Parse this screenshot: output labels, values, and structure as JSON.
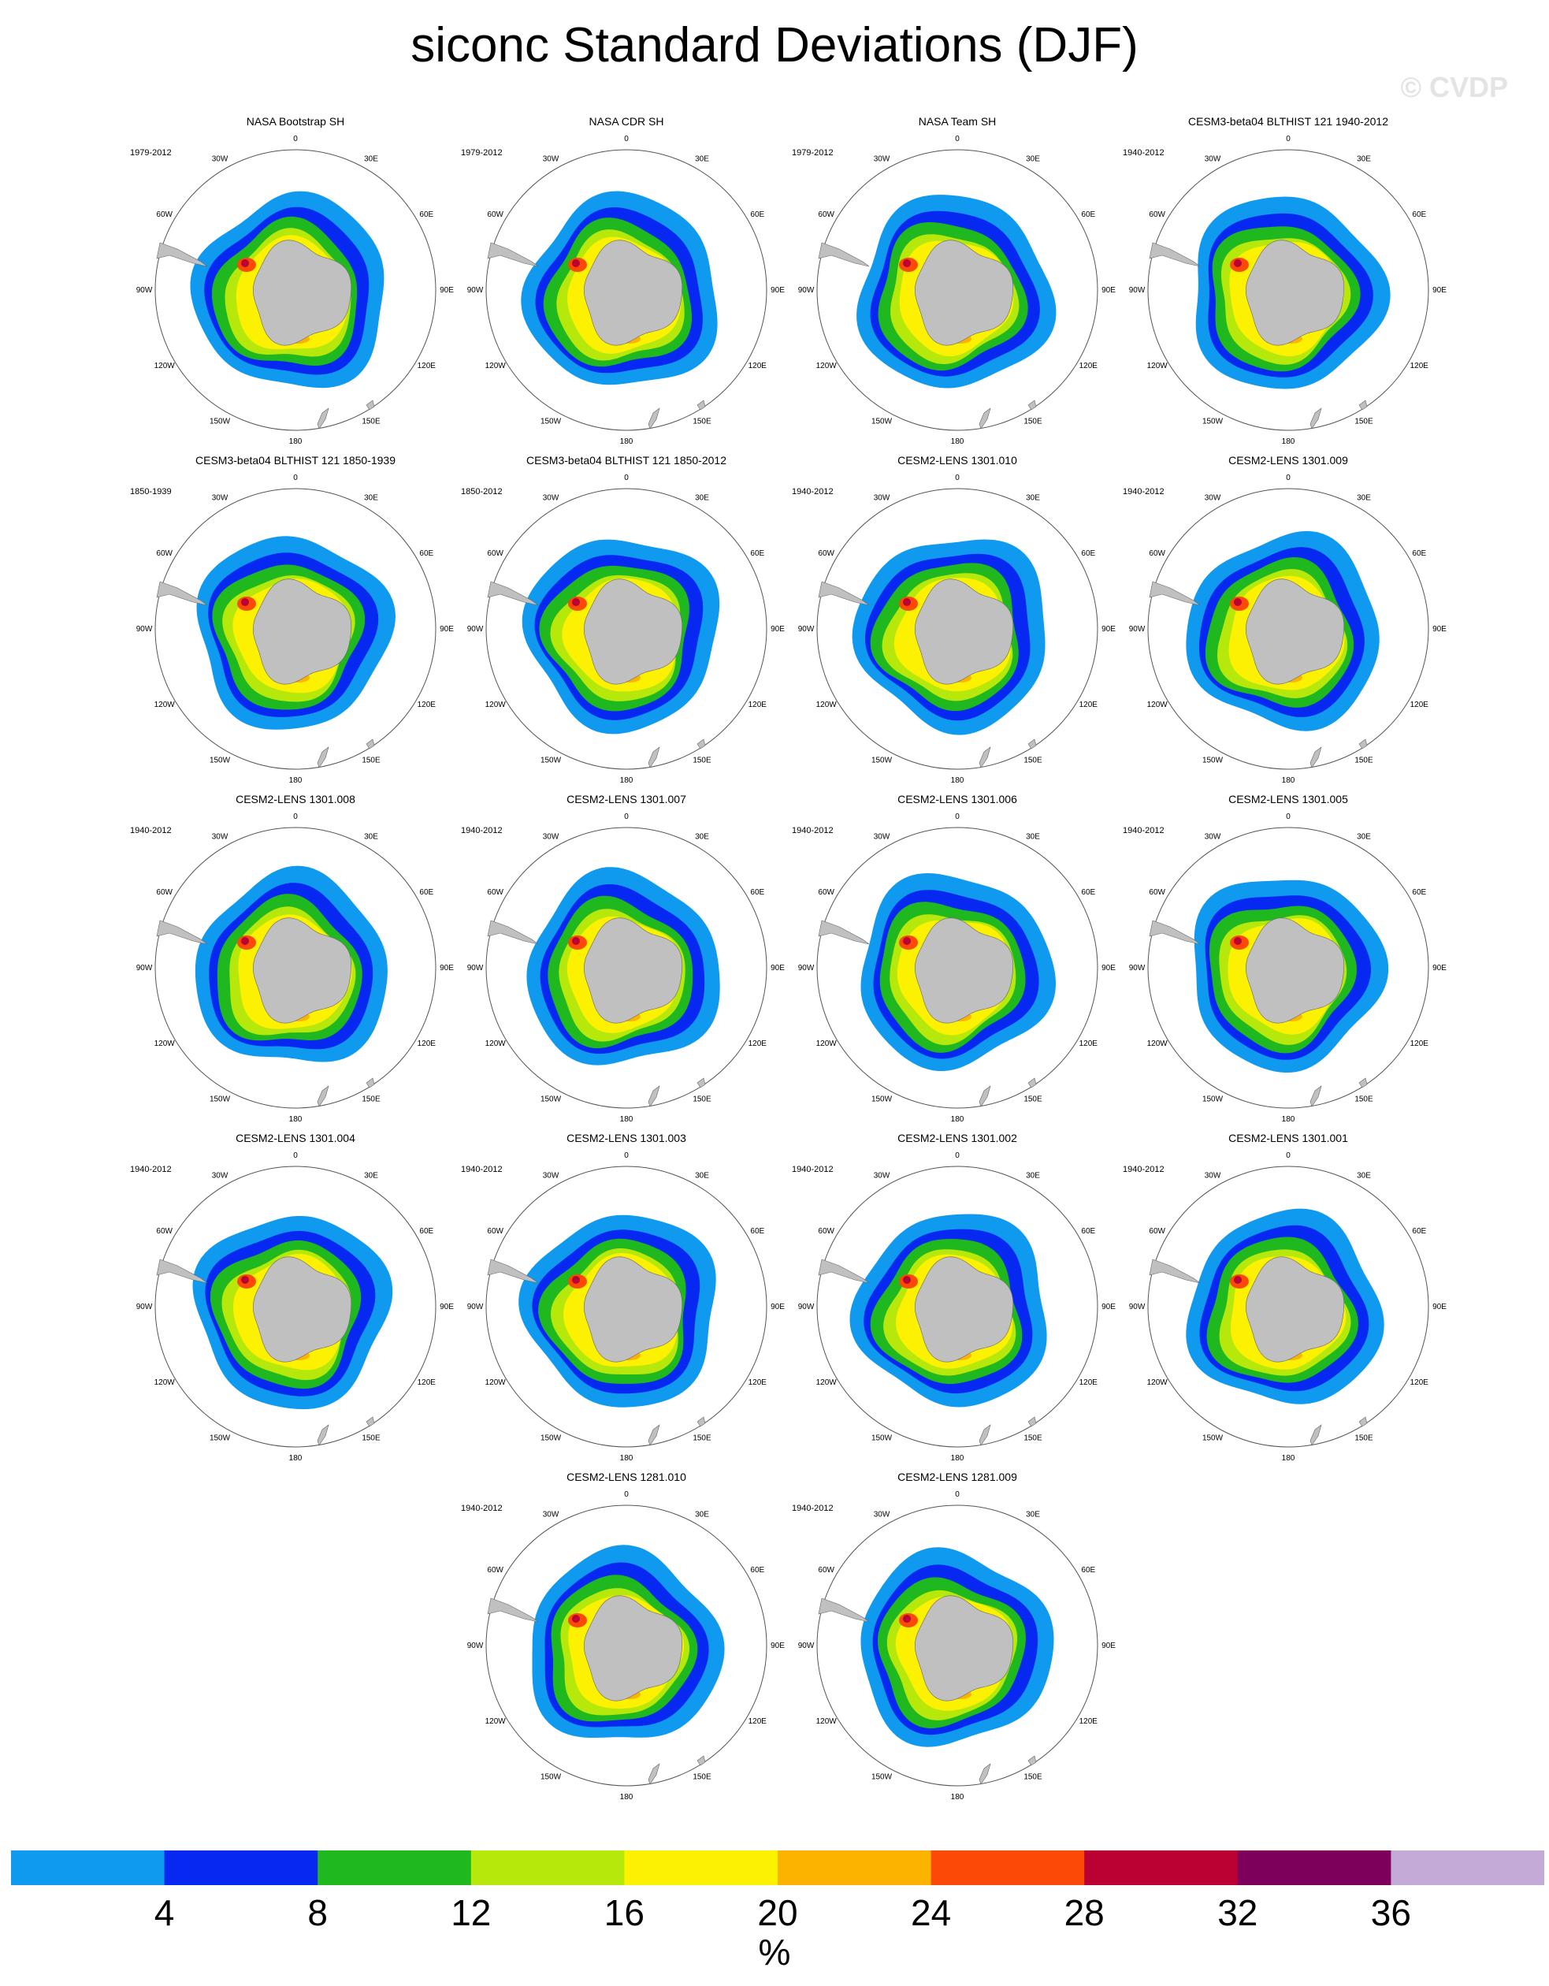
{
  "title": "siconc Standard Deviations (DJF)",
  "watermark": "© CVDP",
  "panels": [
    {
      "title": "NASA Bootstrap SH",
      "years": "1979-2012"
    },
    {
      "title": "NASA CDR SH",
      "years": "1979-2012"
    },
    {
      "title": "NASA Team SH",
      "years": "1979-2012"
    },
    {
      "title": "CESM3-beta04 BLTHIST 121 1940-2012",
      "years": "1940-2012"
    },
    {
      "title": "CESM3-beta04 BLTHIST 121 1850-1939",
      "years": "1850-1939"
    },
    {
      "title": "CESM3-beta04 BLTHIST 121 1850-2012",
      "years": "1850-2012"
    },
    {
      "title": "CESM2-LENS 1301.010",
      "years": "1940-2012"
    },
    {
      "title": "CESM2-LENS 1301.009",
      "years": "1940-2012"
    },
    {
      "title": "CESM2-LENS 1301.008",
      "years": "1940-2012"
    },
    {
      "title": "CESM2-LENS 1301.007",
      "years": "1940-2012"
    },
    {
      "title": "CESM2-LENS 1301.006",
      "years": "1940-2012"
    },
    {
      "title": "CESM2-LENS 1301.005",
      "years": "1940-2012"
    },
    {
      "title": "CESM2-LENS 1301.004",
      "years": "1940-2012"
    },
    {
      "title": "CESM2-LENS 1301.003",
      "years": "1940-2012"
    },
    {
      "title": "CESM2-LENS 1301.002",
      "years": "1940-2012"
    },
    {
      "title": "CESM2-LENS 1301.001",
      "years": "1940-2012"
    },
    {
      "title": "CESM2-LENS 1281.010",
      "years": "1940-2012"
    },
    {
      "title": "CESM2-LENS 1281.009",
      "years": "1940-2012"
    }
  ],
  "longitude_labels": [
    "0",
    "30E",
    "60E",
    "90E",
    "120E",
    "150E",
    "180",
    "150W",
    "120W",
    "90W",
    "60W",
    "30W"
  ],
  "colorbar": {
    "colors": [
      "#0f9af0",
      "#0628f0",
      "#1fb81f",
      "#b7e80c",
      "#fbf100",
      "#fcb300",
      "#fb4a07",
      "#bb0033",
      "#7d005a",
      "#c4aad6"
    ],
    "labels": [
      "4",
      "8",
      "12",
      "16",
      "20",
      "24",
      "28",
      "32",
      "36"
    ],
    "units": "%"
  },
  "land_color": "#c0c0c0"
}
